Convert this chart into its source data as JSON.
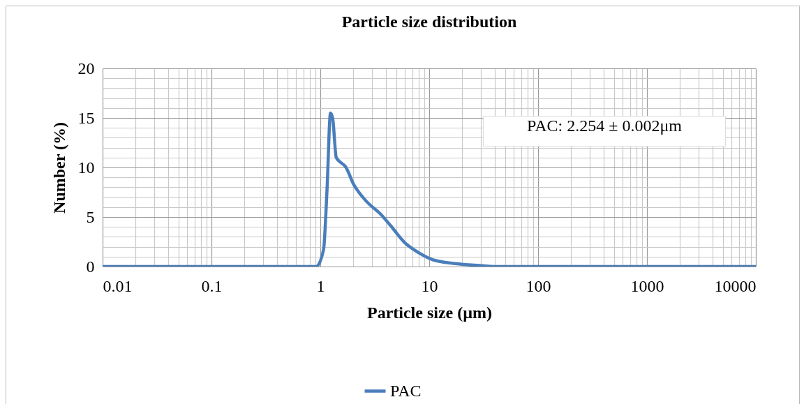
{
  "chart_data": {
    "type": "line",
    "title": "Particle size distribution",
    "xlabel": "Particle size (µm)",
    "ylabel": "Number (%)",
    "log": "x",
    "x": [
      0.01,
      0.1,
      0.5,
      0.915,
      1.07,
      1.15,
      1.24,
      1.3,
      1.4,
      1.54,
      1.7,
      2.02,
      2.59,
      3.65,
      4.44,
      5.97,
      8.0,
      10.7,
      17.5,
      29,
      40,
      100,
      1000,
      10000
    ],
    "series": [
      {
        "name": "PAC",
        "color": "#4a7ebb",
        "values": [
          0,
          0,
          0,
          0,
          1.7,
          7.6,
          15.5,
          14.9,
          11.0,
          10.5,
          10.1,
          8.3,
          6.7,
          5.2,
          4.1,
          2.4,
          1.4,
          0.7,
          0.3,
          0.1,
          0,
          0,
          0,
          0
        ]
      }
    ],
    "xlim": [
      0.01,
      10000
    ],
    "xticks": [
      0.01,
      0.1,
      1,
      10,
      100,
      1000,
      10000
    ],
    "ylim": [
      0,
      20
    ],
    "yticks": [
      0,
      5,
      10,
      15,
      20
    ],
    "grid": true,
    "legend": "bottom",
    "annotations": [
      "PAC: 2.254 ± 0.002μm"
    ]
  }
}
